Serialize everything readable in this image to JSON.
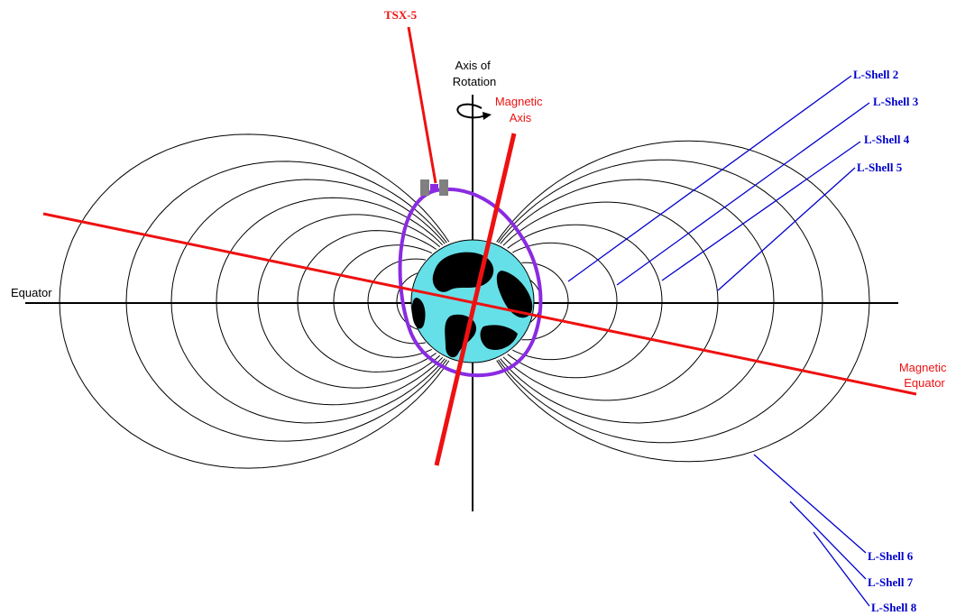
{
  "labels": {
    "satellite": "TSX-5",
    "axis_rotation_line1": "Axis of",
    "axis_rotation_line2": "Rotation",
    "magnetic_axis_line1": "Magnetic",
    "magnetic_axis_line2": "Axis",
    "equator": "Equator",
    "magnetic_equator_line1": "Magnetic",
    "magnetic_equator_line2": "Equator"
  },
  "lshells": [
    {
      "label": "L-Shell 2",
      "shell": 2
    },
    {
      "label": "L-Shell 3",
      "shell": 3
    },
    {
      "label": "L-Shell 4",
      "shell": 4
    },
    {
      "label": "L-Shell 5",
      "shell": 5
    },
    {
      "label": "L-Shell 6",
      "shell": 6
    },
    {
      "label": "L-Shell 7",
      "shell": 7
    },
    {
      "label": "L-Shell 8",
      "shell": 8
    }
  ],
  "colors": {
    "field_lines": "#000000",
    "magnetic": "#ee1111",
    "leader_lines": "#0000cc",
    "orbit": "#8a2be2",
    "earth_ocean": "#66e0e8",
    "earth_land": "#000000",
    "satellite_panel": "#808080",
    "satellite_body": "#8a2be2"
  }
}
